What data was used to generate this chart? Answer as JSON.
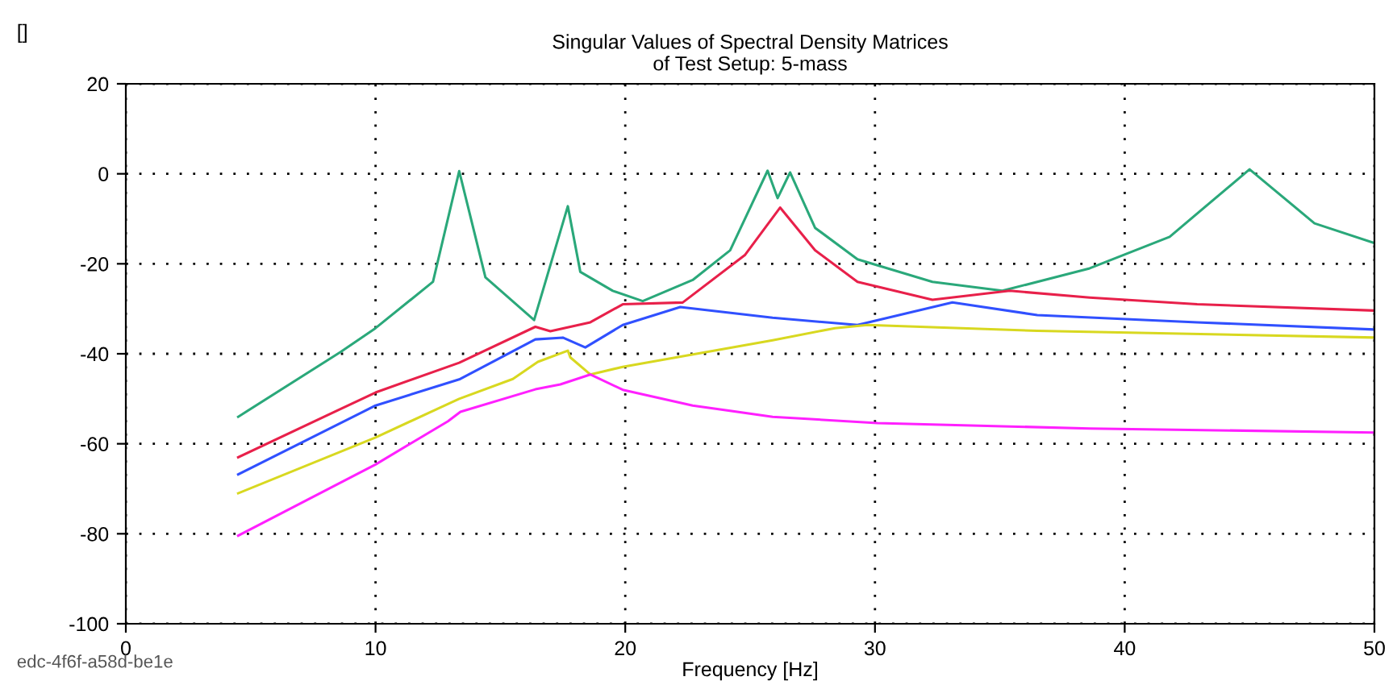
{
  "chart_data": {
    "type": "line",
    "title": "Singular Values of Spectral Density Matrices\nof Test Setup: 5-mass",
    "xlabel": "Frequency [Hz]",
    "annotations": [
      "[]",
      "edc-4f6f-a58d-be1e"
    ],
    "xlim": [
      0,
      50
    ],
    "ylim": [
      -100,
      20
    ],
    "xticks": [
      0,
      10,
      20,
      30,
      40,
      50
    ],
    "yticks": [
      -100,
      -80,
      -60,
      -40,
      -20,
      0,
      20
    ],
    "grid": true,
    "marker": "none",
    "line_style": "solid",
    "series": [
      {
        "color": "#2aa87a",
        "x": [
          4.5,
          8.6,
          10,
          12.3,
          13.35,
          14.4,
          16.35,
          17.7,
          18.2,
          19.5,
          20.7,
          22.7,
          24.2,
          25.7,
          26.1,
          26.6,
          27.6,
          29.3,
          32.3,
          35.1,
          38.6,
          41.8,
          45.0,
          47.6,
          50
        ],
        "values": [
          -54,
          -39.6,
          -34.3,
          -24,
          0.6,
          -23,
          -32.5,
          -7.2,
          -21.8,
          -26,
          -28.3,
          -23.6,
          -17,
          0.7,
          -5.4,
          0.3,
          -12,
          -19,
          -24,
          -26,
          -21,
          -14,
          1,
          -11,
          -15.4
        ]
      },
      {
        "color": "#e8204a",
        "x": [
          4.5,
          10,
          13.35,
          16.4,
          17.0,
          18.6,
          19.9,
          22.3,
          24.8,
          26.2,
          27.6,
          29.3,
          32.3,
          35.4,
          38.6,
          42.9,
          50
        ],
        "values": [
          -63,
          -48.6,
          -42,
          -34,
          -35,
          -33,
          -29,
          -28.6,
          -18,
          -7.5,
          -17,
          -24,
          -28,
          -26,
          -27.5,
          -29,
          -30.4
        ]
      },
      {
        "color": "#3050ff",
        "x": [
          4.5,
          10,
          13.35,
          16.4,
          17.5,
          18.4,
          19.9,
          22.2,
          25.9,
          29.3,
          33.1,
          36.5,
          42.9,
          50
        ],
        "values": [
          -66.8,
          -51.5,
          -45.7,
          -36.8,
          -36.4,
          -38.6,
          -33.6,
          -29.6,
          -32,
          -33.6,
          -28.6,
          -31.4,
          -33,
          -34.6
        ]
      },
      {
        "color": "#d8d820",
        "x": [
          4.5,
          10,
          13.35,
          15.5,
          16.5,
          17.7,
          17.8,
          18.6,
          19.9,
          25.9,
          28.4,
          29.7,
          36.5,
          50
        ],
        "values": [
          -71,
          -58.6,
          -50,
          -45.6,
          -41.8,
          -39.3,
          -40.8,
          -44.6,
          -42.9,
          -37,
          -34.3,
          -33.6,
          -34.9,
          -36.4
        ]
      },
      {
        "color": "#ff20ff",
        "x": [
          4.5,
          10,
          12.9,
          13.4,
          16.4,
          17.4,
          18.6,
          19.9,
          22.7,
          25.9,
          30.1,
          38.6,
          50
        ],
        "values": [
          -80.4,
          -64.6,
          -55,
          -52.9,
          -47.9,
          -46.8,
          -44.6,
          -48,
          -51.5,
          -54,
          -55.4,
          -56.6,
          -57.5
        ]
      }
    ]
  }
}
